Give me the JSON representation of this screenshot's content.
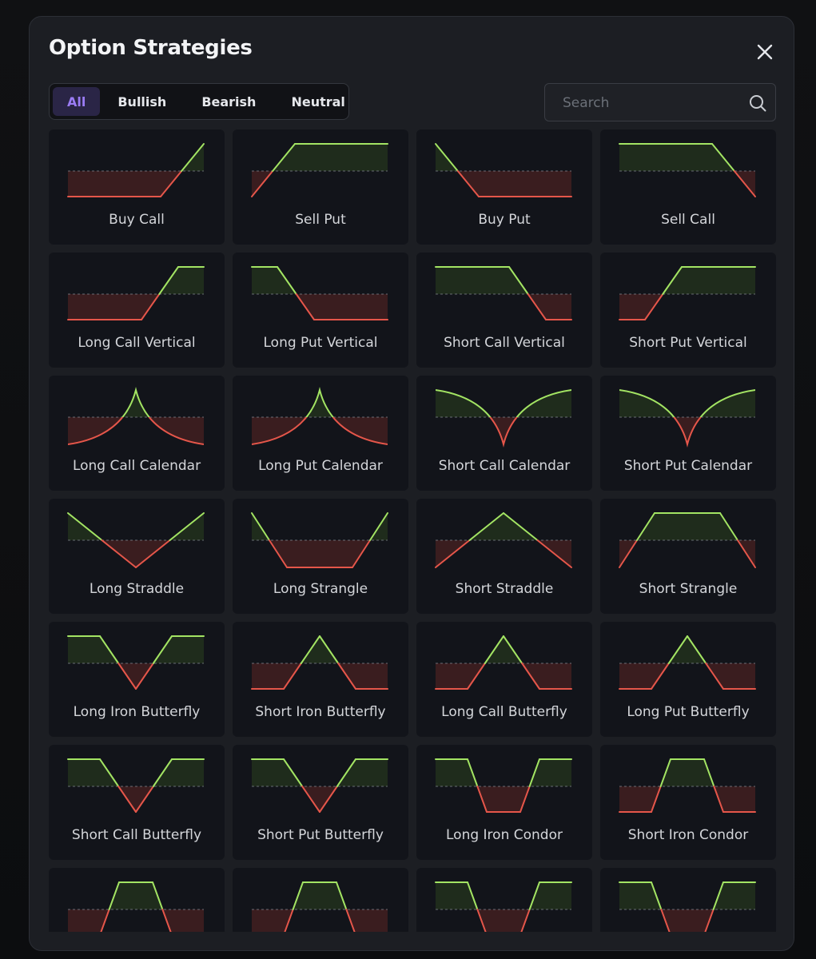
{
  "modal": {
    "title": "Option Strategies"
  },
  "tabs": [
    {
      "label": "All",
      "active": true
    },
    {
      "label": "Bullish",
      "active": false
    },
    {
      "label": "Bearish",
      "active": false
    },
    {
      "label": "Neutral",
      "active": false
    }
  ],
  "search": {
    "placeholder": "Search"
  },
  "colors": {
    "profit": "#a3e463",
    "loss": "#e5564a",
    "profit_fill": "#1f2c1c",
    "loss_fill": "#3a1d1f",
    "accent": "#9b7cf5"
  },
  "strategies": [
    {
      "name": "Buy Call",
      "shape": "buy-call"
    },
    {
      "name": "Sell Put",
      "shape": "sell-put"
    },
    {
      "name": "Buy Put",
      "shape": "buy-put"
    },
    {
      "name": "Sell Call",
      "shape": "sell-call"
    },
    {
      "name": "Long Call Vertical",
      "shape": "long-call-vertical"
    },
    {
      "name": "Long Put Vertical",
      "shape": "long-put-vertical"
    },
    {
      "name": "Short Call Vertical",
      "shape": "short-call-vertical"
    },
    {
      "name": "Short Put Vertical",
      "shape": "short-put-vertical"
    },
    {
      "name": "Long Call Calendar",
      "shape": "long-calendar"
    },
    {
      "name": "Long Put Calendar",
      "shape": "long-calendar"
    },
    {
      "name": "Short Call Calendar",
      "shape": "short-calendar"
    },
    {
      "name": "Short Put Calendar",
      "shape": "short-calendar"
    },
    {
      "name": "Long Straddle",
      "shape": "long-straddle"
    },
    {
      "name": "Long Strangle",
      "shape": "long-strangle"
    },
    {
      "name": "Short Straddle",
      "shape": "short-straddle"
    },
    {
      "name": "Short Strangle",
      "shape": "short-strangle"
    },
    {
      "name": "Long Iron Butterfly",
      "shape": "long-iron-butterfly"
    },
    {
      "name": "Short Iron Butterfly",
      "shape": "short-iron-butterfly"
    },
    {
      "name": "Long Call Butterfly",
      "shape": "short-iron-butterfly"
    },
    {
      "name": "Long Put Butterfly",
      "shape": "short-iron-butterfly"
    },
    {
      "name": "Short Call Butterfly",
      "shape": "long-iron-butterfly"
    },
    {
      "name": "Short Put Butterfly",
      "shape": "long-iron-butterfly"
    },
    {
      "name": "Long Iron Condor",
      "shape": "long-iron-condor"
    },
    {
      "name": "Short Iron Condor",
      "shape": "short-iron-condor"
    },
    {
      "name": "",
      "shape": "short-iron-condor"
    },
    {
      "name": "",
      "shape": "short-iron-condor"
    },
    {
      "name": "",
      "shape": "long-iron-condor"
    },
    {
      "name": "",
      "shape": "long-iron-condor"
    }
  ]
}
